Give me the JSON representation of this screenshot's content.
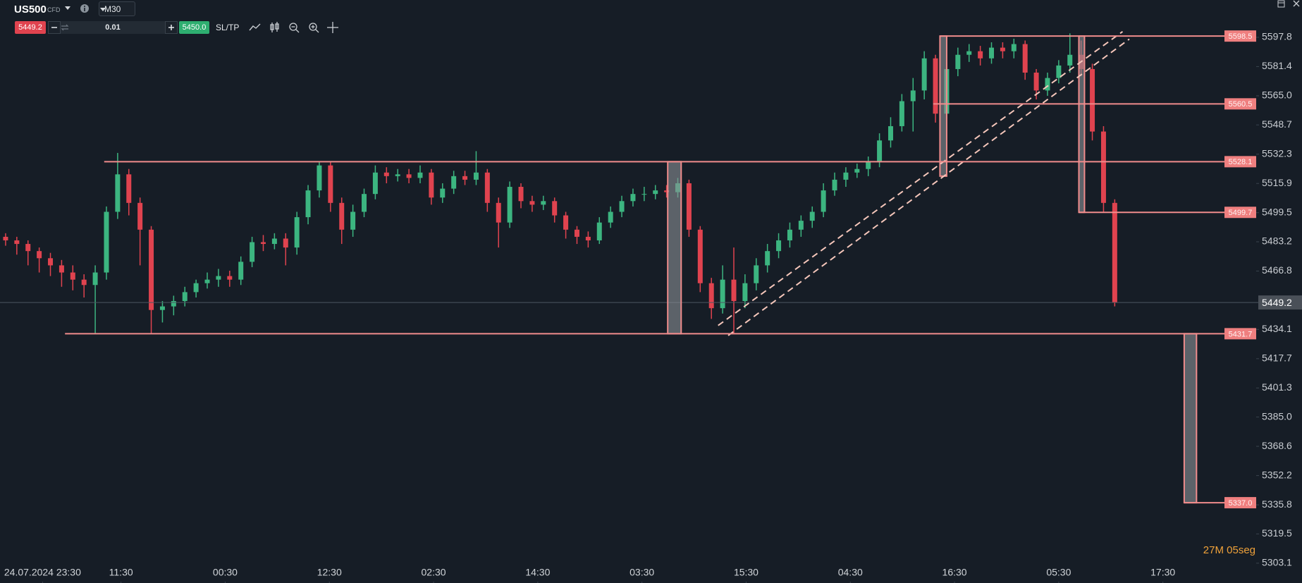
{
  "toolbar": {
    "symbol": "US500",
    "instrument": "CFD",
    "timeframe": "M30",
    "sell": "5449.2",
    "lot": "0.01",
    "buy": "5450.0",
    "sltp": "SL/TP"
  },
  "chart_data": {
    "type": "candlestick",
    "up_color": "#3cb580",
    "down_color": "#e0434f",
    "xlim": [
      -0.5,
      111.5
    ],
    "xticks": [
      {
        "value": 3.3,
        "label": "24.07.2024 23:30"
      },
      {
        "value": 10.3,
        "label": "11:30"
      },
      {
        "value": 19.6,
        "label": "00:30"
      },
      {
        "value": 28.9,
        "label": "12:30"
      },
      {
        "value": 38.2,
        "label": "02:30"
      },
      {
        "value": 47.5,
        "label": "14:30"
      },
      {
        "value": 56.8,
        "label": "03:30"
      },
      {
        "value": 66.1,
        "label": "15:30"
      },
      {
        "value": 75.4,
        "label": "04:30"
      },
      {
        "value": 84.7,
        "label": "16:30"
      },
      {
        "value": 94.0,
        "label": "05:30"
      },
      {
        "value": 103.3,
        "label": "17:30"
      }
    ],
    "ylim": [
      5292.0,
      5618.7
    ],
    "yticks": [
      5597.8,
      5581.4,
      {
        "value": 5565,
        "label": "5565.0"
      },
      5548.7,
      5532.3,
      5515.9,
      5499.5,
      5483.2,
      5466.8,
      5434.1,
      5417.7,
      5401.3,
      {
        "value": 5385,
        "label": "5385.0"
      },
      5368.6,
      5352.2,
      5335.8,
      5319.5,
      5303.1
    ],
    "open": [
      5486,
      5484,
      5482,
      5478,
      5474,
      5470,
      5466,
      5462,
      5459,
      5466,
      5500,
      5521,
      5505,
      5490,
      5445,
      5447,
      5450,
      5455,
      5460,
      5462,
      5464,
      5462,
      5472,
      5483,
      5482,
      5485,
      5480,
      5497,
      5512,
      5526,
      5505,
      5490,
      5500,
      5510,
      5522,
      5520,
      5521,
      5519,
      5522,
      5508,
      5513,
      5520,
      5518,
      5522,
      5505,
      5494,
      5514,
      5506,
      5504,
      5506,
      5498,
      5490,
      5486,
      5484,
      5494,
      5500,
      5506,
      5510,
      5510,
      5512,
      5511,
      5516,
      5490,
      5460,
      5446,
      5462,
      5450,
      5460,
      5470,
      5478,
      5484,
      5490,
      5495,
      5500,
      5512,
      5518,
      5522,
      5524,
      5528,
      5540,
      5548,
      5562,
      5568,
      5586,
      5555,
      5580,
      5588,
      5590,
      5586,
      5592,
      5590,
      5594,
      5578,
      5568,
      5575,
      5582,
      5588,
      5580,
      5545,
      5505
    ],
    "high": [
      5488,
      5486,
      5484,
      5480,
      5477,
      5473,
      5470,
      5465,
      5470,
      5503,
      5533,
      5524,
      5508,
      5492,
      5450,
      5453,
      5458,
      5462,
      5466,
      5468,
      5467,
      5475,
      5486,
      5487,
      5488,
      5488,
      5500,
      5515,
      5528,
      5528,
      5508,
      5504,
      5513,
      5526,
      5525,
      5524,
      5524,
      5526,
      5524,
      5516,
      5523,
      5523,
      5534,
      5524,
      5508,
      5517,
      5516,
      5509,
      5509,
      5508,
      5500,
      5492,
      5489,
      5497,
      5503,
      5509,
      5513,
      5514,
      5515,
      5515,
      5519,
      5518,
      5492,
      5463,
      5470,
      5480,
      5465,
      5474,
      5482,
      5488,
      5494,
      5498,
      5503,
      5516,
      5522,
      5525,
      5527,
      5531,
      5544,
      5553,
      5566,
      5575,
      5590,
      5588,
      5584,
      5592,
      5594,
      5593,
      5595,
      5595,
      5597,
      5596,
      5580,
      5578,
      5585,
      5600,
      5596,
      5583,
      5548,
      5507
    ],
    "low": [
      5481,
      5476,
      5470,
      5466,
      5464,
      5458,
      5456,
      5452,
      5432,
      5462,
      5496,
      5498,
      5470,
      5432,
      5438,
      5442,
      5447,
      5452,
      5457,
      5458,
      5458,
      5459,
      5469,
      5478,
      5479,
      5470,
      5476,
      5493,
      5508,
      5500,
      5482,
      5486,
      5497,
      5507,
      5516,
      5517,
      5516,
      5516,
      5504,
      5505,
      5510,
      5515,
      5515,
      5500,
      5480,
      5491,
      5502,
      5500,
      5501,
      5494,
      5485,
      5482,
      5480,
      5482,
      5491,
      5497,
      5503,
      5506,
      5507,
      5508,
      5508,
      5486,
      5455,
      5440,
      5443,
      5432,
      5446,
      5456,
      5466,
      5474,
      5480,
      5486,
      5491,
      5497,
      5509,
      5514,
      5519,
      5520,
      5525,
      5536,
      5545,
      5545,
      5563,
      5550,
      5552,
      5576,
      5584,
      5582,
      5583,
      5586,
      5586,
      5574,
      5563,
      5565,
      5572,
      5578,
      5576,
      5540,
      5500,
      5447
    ],
    "close": [
      5484,
      5482,
      5478,
      5474,
      5470,
      5466,
      5462,
      5459,
      5466,
      5500,
      5521,
      5505,
      5490,
      5445,
      5447,
      5450,
      5455,
      5460,
      5462,
      5464,
      5462,
      5472,
      5483,
      5482,
      5485,
      5480,
      5497,
      5512,
      5526,
      5505,
      5490,
      5500,
      5510,
      5522,
      5520,
      5521,
      5519,
      5522,
      5508,
      5513,
      5520,
      5518,
      5522,
      5505,
      5494,
      5514,
      5506,
      5504,
      5506,
      5498,
      5490,
      5486,
      5484,
      5494,
      5500,
      5506,
      5510,
      5510,
      5512,
      5511,
      5516,
      5490,
      5460,
      5446,
      5462,
      5450,
      5460,
      5470,
      5478,
      5484,
      5490,
      5495,
      5500,
      5512,
      5518,
      5522,
      5524,
      5528,
      5540,
      5548,
      5562,
      5568,
      5586,
      5555,
      5580,
      5588,
      5590,
      5586,
      5592,
      5590,
      5594,
      5578,
      5568,
      5575,
      5582,
      5588,
      5580,
      5545,
      5505,
      5449.2
    ],
    "last_price": 5449.2,
    "levels": [
      {
        "value": 5598.5,
        "from": 83.4
      },
      {
        "value": 5560.5,
        "from": 82.8
      },
      {
        "value": 5528.1,
        "from": 8.8
      },
      {
        "value": 5499.7,
        "from": 95.8
      },
      {
        "value": 5431.7,
        "from": 5.3
      },
      {
        "value": 5337,
        "label": "5337.0",
        "from": 105.2
      }
    ],
    "boxes": [
      {
        "x": [
          59.1,
          60.3
        ],
        "y": [
          5528.1,
          5431.7
        ]
      },
      {
        "x": [
          83.4,
          84.0
        ],
        "y": [
          5598.5,
          5520
        ]
      },
      {
        "x": [
          95.8,
          96.3
        ],
        "y": [
          5598.5,
          5499.7
        ]
      },
      {
        "x": [
          105.2,
          106.3
        ],
        "y": [
          5431.7,
          5337
        ]
      }
    ],
    "trendlines": [
      {
        "x": [
          63.6,
          99.7
        ],
        "y": [
          5436.3,
          5601
        ]
      },
      {
        "x": [
          64.5,
          100.3
        ],
        "y": [
          5430.7,
          5596.8
        ]
      }
    ],
    "timer": "27M 05seg"
  }
}
